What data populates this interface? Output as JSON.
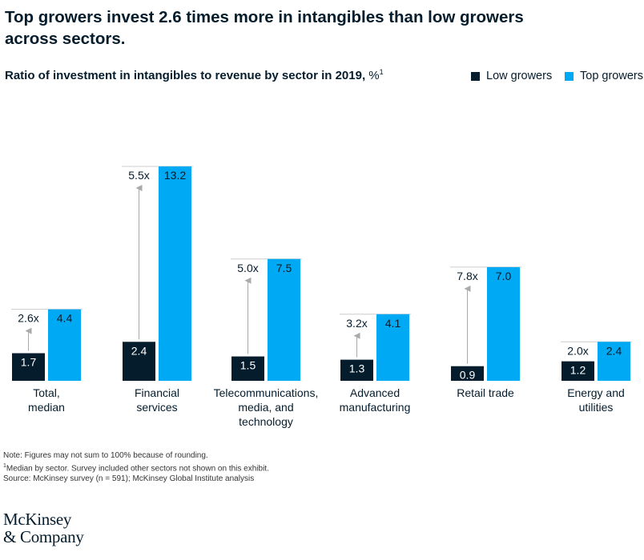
{
  "title": "Top growers invest 2.6 times more in intangibles than low growers across sectors.",
  "subtitle": "Ratio of investment in intangibles to revenue by sector in 2019,",
  "subtitle_unit": "%",
  "subtitle_note_marker": "1",
  "legend": {
    "low_label": "Low growers",
    "top_label": "Top growers"
  },
  "colors": {
    "low": "#051c2c",
    "top": "#00a9f4",
    "arrow": "#aaaaaa",
    "text": "#051c2c"
  },
  "chart_data": {
    "type": "bar",
    "title": "Ratio of investment in intangibles to revenue by sector in 2019, %",
    "categories": [
      [
        "Total,",
        "median"
      ],
      [
        "Financial",
        "services"
      ],
      [
        "Telecommunications,",
        "media, and",
        "technology"
      ],
      [
        "Advanced",
        "manufacturing"
      ],
      [
        "Retail trade"
      ],
      [
        "Energy and",
        "utilities"
      ]
    ],
    "series": [
      {
        "name": "Low growers",
        "values": [
          1.7,
          2.4,
          1.5,
          1.3,
          0.9,
          1.2
        ]
      },
      {
        "name": "Top growers",
        "values": [
          4.4,
          13.2,
          7.5,
          4.1,
          7.0,
          2.4
        ]
      }
    ],
    "value_labels_low": [
      "1.7",
      "2.4",
      "1.5",
      "1.3",
      "0.9",
      "1.2"
    ],
    "value_labels_top": [
      "4.4",
      "13.2",
      "7.5",
      "4.1",
      "7.0",
      "2.4"
    ],
    "multipliers": [
      "2.6x",
      "5.5x",
      "5.0x",
      "3.2x",
      "7.8x",
      "2.0x"
    ],
    "ylim": [
      0,
      13.2
    ]
  },
  "notes": {
    "line1": "Note: Figures may not sum to 100% because of rounding.",
    "line2_marker": "1",
    "line2": "Median by sector. Survey included other sectors not shown on this exhibit.",
    "line3": "Source: McKinsey survey (n = 591); McKinsey Global Institute analysis"
  },
  "logo": {
    "line1": "McKinsey",
    "line2": "& Company"
  }
}
